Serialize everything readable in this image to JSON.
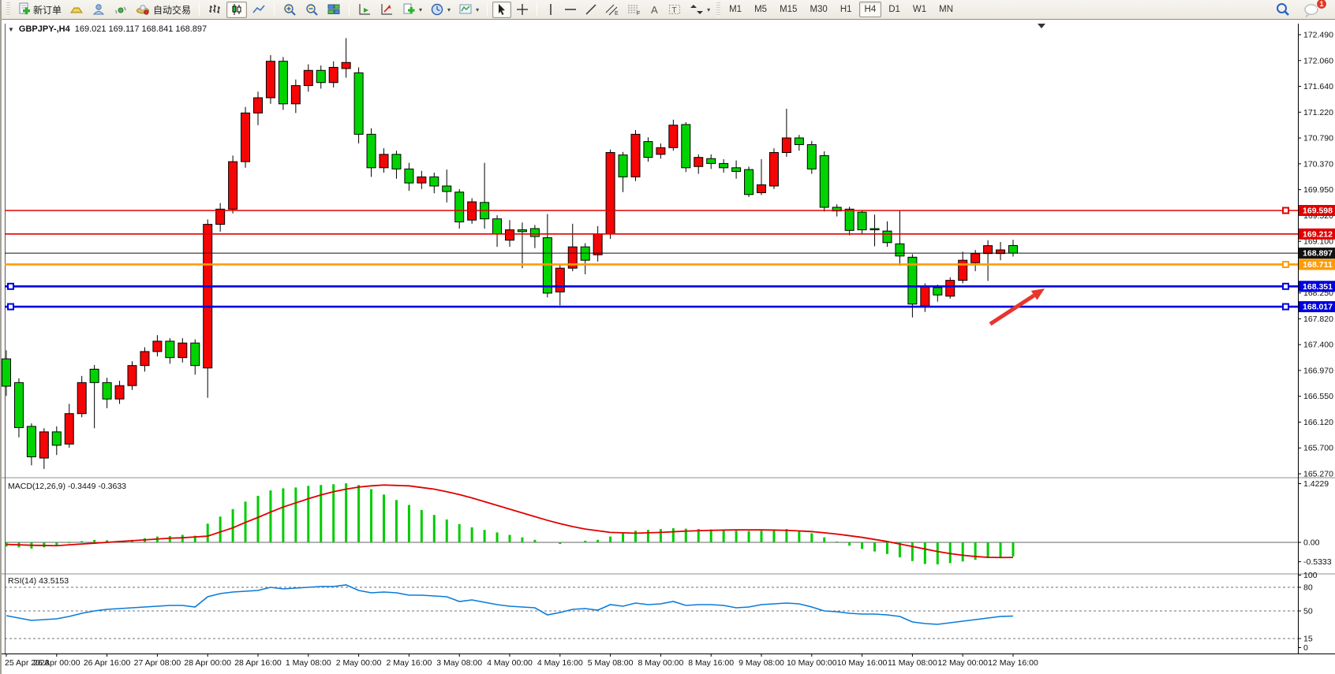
{
  "toolbar": {
    "new_order_label": "新订单",
    "auto_trading_label": "自动交易",
    "icons": [
      "new-order-icon",
      "gold-icon",
      "profile-icon",
      "signal-icon",
      "auto-trading-icon",
      "bar-chart-icon",
      "candlestick-chart-icon",
      "line-chart-icon",
      "zoom-in-icon",
      "zoom-out-icon",
      "tile-windows-icon",
      "auto-scroll-icon",
      "chart-shift-icon",
      "new-template-icon",
      "period-icon",
      "indicators-icon",
      "cursor-icon",
      "crosshair-icon",
      "vertical-line-icon",
      "horizontal-line-icon",
      "trendline-icon",
      "channel-icon",
      "fibonacci-icon",
      "text-icon",
      "text-label-icon",
      "arrows-icon",
      "search-icon",
      "chat-icon"
    ],
    "timeframes": [
      "M1",
      "M5",
      "M15",
      "M30",
      "H1",
      "H4",
      "D1",
      "W1",
      "MN"
    ],
    "active_timeframe": "H4",
    "badge_count": "1"
  },
  "chart": {
    "title_symbol": "GBPJPY-,H4",
    "title_ohlc": "169.021 169.117 168.841 168.897"
  },
  "indicators": {
    "macd_label": "MACD(12,26,9) -0.3449 -0.3633",
    "rsi_label": "RSI(14) 43.5153",
    "macd_axis": [
      "1.4229",
      "0.00",
      "-0.5333"
    ],
    "rsi_axis": [
      "100",
      "80",
      "50",
      "15",
      "0"
    ]
  },
  "price_axis_labels": [
    "172.490",
    "172.060",
    "171.640",
    "171.220",
    "170.790",
    "170.370",
    "169.950",
    "169.520",
    "169.100",
    "168.680",
    "168.250",
    "167.820",
    "167.400",
    "166.970",
    "166.550",
    "166.120",
    "165.700",
    "165.270"
  ],
  "time_axis_labels": [
    "25 Apr 2023",
    "26 Apr 00:00",
    "26 Apr 16:00",
    "27 Apr 08:00",
    "28 Apr 00:00",
    "28 Apr 16:00",
    "1 May 08:00",
    "2 May 00:00",
    "2 May 16:00",
    "3 May 08:00",
    "4 May 00:00",
    "4 May 16:00",
    "5 May 08:00",
    "8 May 00:00",
    "8 May 16:00",
    "9 May 08:00",
    "10 May 00:00",
    "10 May 16:00",
    "11 May 08:00",
    "12 May 00:00",
    "12 May 16:00"
  ],
  "hlines": [
    {
      "price": "169.598",
      "value": 169.598,
      "color": "#e00000",
      "width": 1.6,
      "right_handle": true,
      "left_handle": false
    },
    {
      "price": "169.212",
      "value": 169.212,
      "color": "#e00000",
      "width": 1.6,
      "right_handle": false,
      "left_handle": false
    },
    {
      "price": "168.897",
      "value": 168.897,
      "color": "#111111",
      "width": 1,
      "right_handle": false,
      "left_handle": false
    },
    {
      "price": "168.711",
      "value": 168.711,
      "color": "#ff9c00",
      "width": 2.6,
      "right_handle": true,
      "left_handle": false
    },
    {
      "price": "168.351",
      "value": 168.351,
      "color": "#0000dd",
      "width": 2.6,
      "right_handle": true,
      "left_handle": true
    },
    {
      "price": "168.017",
      "value": 168.017,
      "color": "#0000dd",
      "width": 2.6,
      "right_handle": true,
      "left_handle": true
    }
  ],
  "annotation_arrow": {
    "from": [
      1253,
      411
    ],
    "to": [
      1322,
      366
    ],
    "color": "#e8352e"
  },
  "chart_data": {
    "type": "candlestick",
    "symbol": "GBPJPY-",
    "timeframe": "H4",
    "ylim": [
      165.27,
      172.49
    ],
    "colors": {
      "up": "#f50505",
      "down": "#00d400",
      "wick": "#000000",
      "macd_hist": "#00cc00",
      "macd_signal": "#e00000",
      "rsi_line": "#0a7bd8"
    },
    "last_ohlc": {
      "open": 169.021,
      "high": 169.117,
      "low": 168.841,
      "close": 168.897
    },
    "macd_values": {
      "macd": -0.3449,
      "signal": -0.3633
    },
    "rsi_value": 43.5153,
    "candles": [
      [
        167.16,
        167.3,
        166.55,
        166.71
      ],
      [
        166.77,
        166.84,
        165.87,
        166.03
      ],
      [
        166.05,
        166.1,
        165.41,
        165.55
      ],
      [
        165.53,
        166.02,
        165.35,
        165.96
      ],
      [
        165.96,
        166.05,
        165.58,
        165.74
      ],
      [
        165.76,
        166.42,
        165.7,
        166.26
      ],
      [
        166.26,
        166.88,
        166.2,
        166.77
      ],
      [
        166.99,
        167.06,
        166.02,
        166.77
      ],
      [
        166.77,
        166.85,
        166.35,
        166.5
      ],
      [
        166.5,
        166.8,
        166.42,
        166.72
      ],
      [
        166.72,
        167.12,
        166.65,
        167.05
      ],
      [
        167.05,
        167.35,
        166.95,
        167.28
      ],
      [
        167.28,
        167.55,
        167.2,
        167.45
      ],
      [
        167.45,
        167.5,
        167.08,
        167.18
      ],
      [
        167.18,
        167.5,
        167.1,
        167.42
      ],
      [
        167.42,
        167.48,
        166.9,
        167.05
      ],
      [
        167.01,
        169.45,
        166.52,
        169.37
      ],
      [
        169.37,
        169.72,
        169.25,
        169.62
      ],
      [
        169.62,
        170.5,
        169.55,
        170.4
      ],
      [
        170.4,
        171.3,
        170.3,
        171.2
      ],
      [
        171.2,
        171.55,
        171.0,
        171.45
      ],
      [
        171.45,
        172.15,
        171.35,
        172.05
      ],
      [
        172.05,
        172.12,
        171.25,
        171.35
      ],
      [
        171.35,
        171.75,
        171.2,
        171.65
      ],
      [
        171.65,
        172.0,
        171.55,
        171.9
      ],
      [
        171.9,
        171.98,
        171.6,
        171.7
      ],
      [
        171.7,
        172.05,
        171.62,
        171.95
      ],
      [
        171.93,
        172.43,
        171.78,
        172.03
      ],
      [
        171.86,
        171.95,
        170.7,
        170.85
      ],
      [
        170.85,
        170.95,
        170.15,
        170.3
      ],
      [
        170.3,
        170.62,
        170.22,
        170.52
      ],
      [
        170.52,
        170.58,
        170.12,
        170.28
      ],
      [
        170.28,
        170.38,
        169.92,
        170.05
      ],
      [
        170.05,
        170.25,
        169.95,
        170.15
      ],
      [
        170.15,
        170.22,
        169.88,
        170.0
      ],
      [
        170.0,
        170.27,
        169.73,
        169.91
      ],
      [
        169.9,
        169.95,
        169.3,
        169.41
      ],
      [
        169.44,
        169.8,
        169.38,
        169.74
      ],
      [
        169.73,
        170.38,
        169.3,
        169.46
      ],
      [
        169.46,
        169.52,
        169.0,
        169.21
      ],
      [
        169.11,
        169.44,
        169.0,
        169.28
      ],
      [
        169.28,
        169.4,
        168.65,
        169.25
      ],
      [
        169.3,
        169.36,
        168.98,
        169.17
      ],
      [
        169.15,
        169.54,
        168.17,
        168.24
      ],
      [
        168.26,
        168.7,
        168.04,
        168.65
      ],
      [
        168.65,
        169.38,
        168.6,
        169.0
      ],
      [
        169.0,
        169.06,
        168.55,
        168.78
      ],
      [
        168.87,
        169.34,
        168.76,
        169.21
      ],
      [
        169.21,
        170.6,
        169.13,
        170.55
      ],
      [
        170.51,
        170.56,
        169.9,
        170.15
      ],
      [
        170.15,
        170.92,
        170.08,
        170.85
      ],
      [
        170.73,
        170.8,
        170.4,
        170.47
      ],
      [
        170.52,
        170.7,
        170.45,
        170.63
      ],
      [
        170.63,
        171.09,
        170.58,
        171.0
      ],
      [
        171.01,
        171.05,
        170.23,
        170.3
      ],
      [
        170.32,
        170.52,
        170.2,
        170.47
      ],
      [
        170.45,
        170.52,
        170.28,
        170.37
      ],
      [
        170.37,
        170.44,
        170.22,
        170.3
      ],
      [
        170.3,
        170.42,
        170.12,
        170.24
      ],
      [
        170.27,
        170.32,
        169.82,
        169.86
      ],
      [
        169.89,
        170.44,
        169.85,
        170.02
      ],
      [
        170.0,
        170.62,
        169.95,
        170.55
      ],
      [
        170.55,
        171.27,
        170.48,
        170.79
      ],
      [
        170.79,
        170.84,
        170.58,
        170.68
      ],
      [
        170.68,
        170.74,
        170.2,
        170.28
      ],
      [
        170.5,
        170.57,
        169.58,
        169.65
      ],
      [
        169.65,
        169.7,
        169.5,
        169.59
      ],
      [
        169.62,
        169.66,
        169.19,
        169.27
      ],
      [
        169.57,
        169.6,
        169.2,
        169.28
      ],
      [
        169.3,
        169.53,
        169.01,
        169.28
      ],
      [
        169.26,
        169.42,
        169.0,
        169.07
      ],
      [
        169.05,
        169.6,
        168.69,
        168.85
      ],
      [
        168.83,
        168.88,
        167.84,
        168.06
      ],
      [
        168.03,
        168.4,
        167.93,
        168.35
      ],
      [
        168.33,
        168.38,
        168.1,
        168.21
      ],
      [
        168.19,
        168.5,
        168.15,
        168.45
      ],
      [
        168.45,
        168.92,
        168.4,
        168.78
      ],
      [
        168.74,
        168.95,
        168.6,
        168.89
      ],
      [
        168.89,
        169.11,
        168.44,
        169.02
      ],
      [
        168.89,
        169.08,
        168.78,
        168.95
      ],
      [
        169.021,
        169.117,
        168.841,
        168.897
      ]
    ],
    "macd_hist": [
      -0.1,
      -0.12,
      -0.15,
      -0.12,
      -0.08,
      -0.02,
      0.03,
      0.06,
      0.05,
      0.04,
      0.06,
      0.1,
      0.14,
      0.15,
      0.18,
      0.16,
      0.45,
      0.62,
      0.8,
      0.98,
      1.12,
      1.25,
      1.3,
      1.32,
      1.36,
      1.38,
      1.4,
      1.42,
      1.38,
      1.28,
      1.15,
      1.02,
      0.9,
      0.78,
      0.66,
      0.55,
      0.44,
      0.36,
      0.3,
      0.24,
      0.18,
      0.12,
      0.06,
      0.0,
      -0.04,
      0.0,
      0.04,
      0.06,
      0.14,
      0.22,
      0.28,
      0.3,
      0.32,
      0.34,
      0.33,
      0.32,
      0.31,
      0.3,
      0.28,
      0.27,
      0.28,
      0.3,
      0.32,
      0.28,
      0.22,
      0.12,
      0.02,
      -0.08,
      -0.16,
      -0.22,
      -0.28,
      -0.36,
      -0.45,
      -0.52,
      -0.53,
      -0.5,
      -0.46,
      -0.42,
      -0.38,
      -0.36,
      -0.34
    ],
    "macd_signal": [
      -0.05,
      -0.06,
      -0.07,
      -0.075,
      -0.08,
      -0.06,
      -0.04,
      -0.02,
      0,
      0.02,
      0.04,
      0.06,
      0.08,
      0.1,
      0.11,
      0.13,
      0.15,
      0.25,
      0.35,
      0.48,
      0.6,
      0.73,
      0.85,
      0.95,
      1.05,
      1.14,
      1.22,
      1.28,
      1.33,
      1.36,
      1.38,
      1.37,
      1.36,
      1.32,
      1.28,
      1.22,
      1.15,
      1.07,
      0.98,
      0.89,
      0.8,
      0.71,
      0.62,
      0.53,
      0.45,
      0.38,
      0.32,
      0.28,
      0.24,
      0.23,
      0.22,
      0.23,
      0.24,
      0.255,
      0.27,
      0.28,
      0.29,
      0.295,
      0.3,
      0.3,
      0.3,
      0.295,
      0.29,
      0.275,
      0.26,
      0.23,
      0.2,
      0.16,
      0.12,
      0.07,
      0.02,
      -0.04,
      -0.1,
      -0.16,
      -0.22,
      -0.27,
      -0.31,
      -0.34,
      -0.36,
      -0.365,
      -0.3633
    ],
    "rsi": [
      44,
      41,
      38,
      39,
      40,
      43,
      47,
      50,
      52,
      53,
      54,
      55,
      56,
      57,
      57,
      55,
      68,
      72,
      74,
      75,
      76,
      80,
      78,
      79,
      80,
      81,
      81,
      83,
      76,
      73,
      74,
      73,
      70,
      70,
      69,
      68,
      62,
      64,
      61,
      58,
      56,
      55,
      54,
      45,
      48,
      52,
      53,
      51,
      58,
      56,
      60,
      58,
      59,
      62,
      57,
      58,
      58,
      57,
      54,
      55,
      58,
      59,
      60,
      59,
      55,
      50,
      49,
      47,
      46,
      46,
      45,
      43,
      36,
      34,
      33,
      35,
      37,
      39,
      41,
      43,
      43.5
    ]
  }
}
